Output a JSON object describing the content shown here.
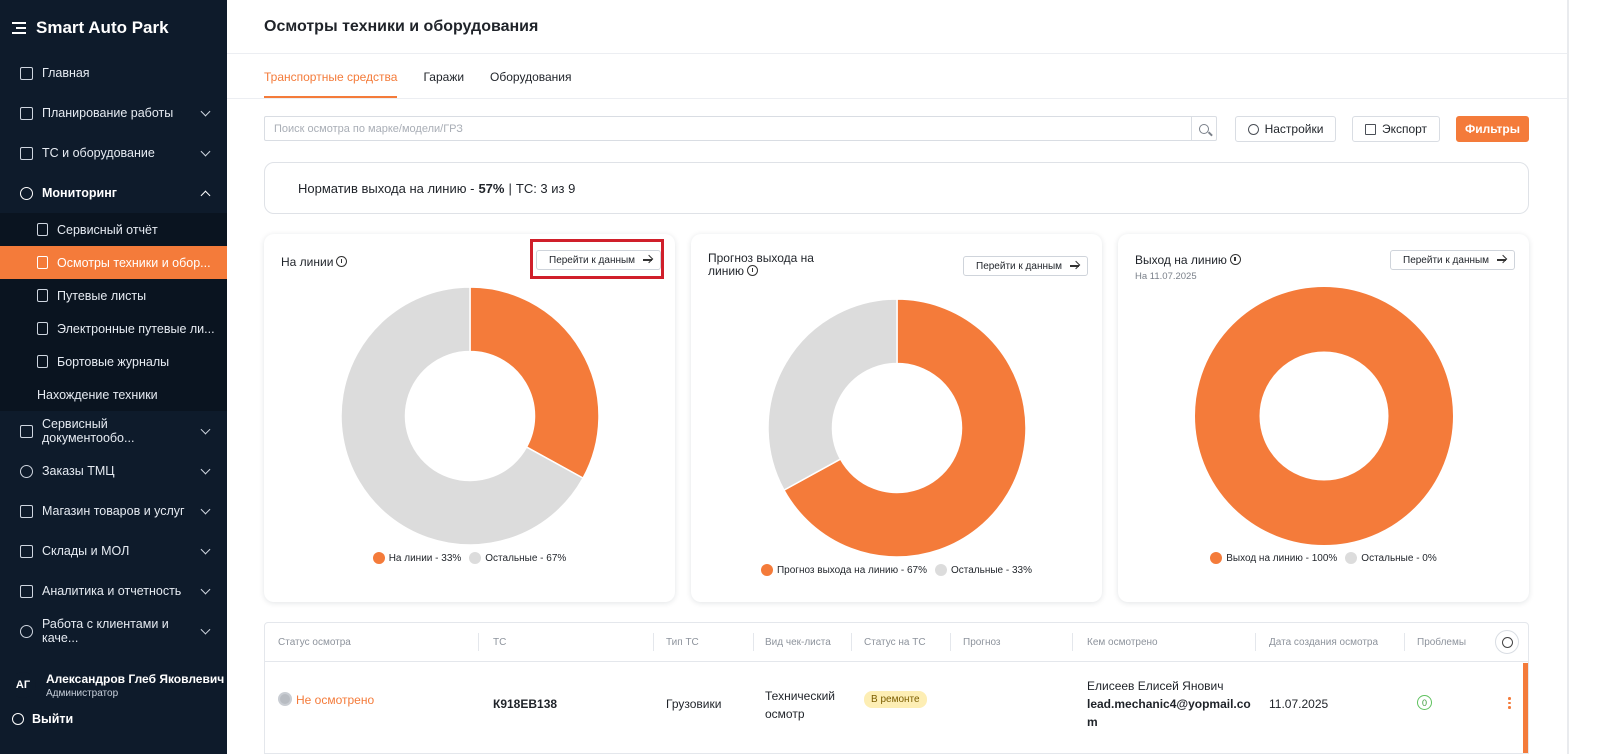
{
  "app": {
    "brand": "Smart Auto Park"
  },
  "sidebar": {
    "items": [
      {
        "label": "Главная"
      },
      {
        "label": "Планирование работы"
      },
      {
        "label": "ТС и оборудование"
      },
      {
        "label": "Мониторинг"
      }
    ],
    "sub_items": [
      {
        "label": "Сервисный отчёт"
      },
      {
        "label": "Осмотры техники и обор..."
      },
      {
        "label": "Путевые листы"
      },
      {
        "label": "Электронные путевые ли..."
      },
      {
        "label": "Бортовые журналы"
      },
      {
        "label": "Нахождение техники"
      }
    ],
    "items_after": [
      {
        "label": "Сервисный документообо..."
      },
      {
        "label": "Заказы ТМЦ"
      },
      {
        "label": "Магазин товаров и услуг"
      },
      {
        "label": "Склады и МОЛ"
      },
      {
        "label": "Аналитика и отчетность"
      },
      {
        "label": "Работа с клиентами и каче..."
      }
    ],
    "user": {
      "initials": "АГ",
      "name": "Александров Глеб Яковлевич",
      "role": "Администратор"
    },
    "logout": "Выйти"
  },
  "header": {
    "title": "Осмотры техники и оборудования"
  },
  "tabs": [
    {
      "label": "Транспортные средства"
    },
    {
      "label": "Гаражи"
    },
    {
      "label": "Оборудования"
    }
  ],
  "search": {
    "placeholder": "Поиск осмотра по марке/модели/ГРЗ"
  },
  "toolbar": {
    "settings": "Настройки",
    "export": "Экспорт",
    "filters": "Фильтры"
  },
  "norm": {
    "label": "Норматив выхода на линию -",
    "percent": "57%",
    "sep": "|",
    "vehicles": "ТС: 3 из 9"
  },
  "cards": [
    {
      "title": "На линии",
      "subtitle": "",
      "button": "Перейти к данным",
      "legend_a": "На линии - 33%",
      "legend_b": "Остальные - 67%"
    },
    {
      "title_line1": "Прогноз выхода на",
      "title_line2": "линию",
      "button": "Перейти к данным",
      "legend_a": "Прогноз выхода на линию - 67%",
      "legend_b": "Остальные - 33%"
    },
    {
      "title": "Выход на линию",
      "subtitle": "На 11.07.2025",
      "button": "Перейти к данным",
      "legend_a": "Выход на линию - 100%",
      "legend_b": "Остальные - 0%"
    }
  ],
  "chart_data": [
    {
      "type": "pie",
      "title": "На линии",
      "categories": [
        "На линии",
        "Остальные"
      ],
      "values": [
        33,
        67
      ],
      "colors": [
        "#f47b3a",
        "#dcdcdc"
      ],
      "legend": "bottom"
    },
    {
      "type": "pie",
      "title": "Прогноз выхода на линию",
      "categories": [
        "Прогноз выхода на линию",
        "Остальные"
      ],
      "values": [
        67,
        33
      ],
      "colors": [
        "#f47b3a",
        "#dcdcdc"
      ],
      "legend": "bottom"
    },
    {
      "type": "pie",
      "title": "Выход на линию",
      "subtitle": "На 11.07.2025",
      "categories": [
        "Выход на линию",
        "Остальные"
      ],
      "values": [
        100,
        0
      ],
      "colors": [
        "#f47b3a",
        "#dcdcdc"
      ],
      "legend": "bottom"
    }
  ],
  "table": {
    "columns": [
      "Статус осмотра",
      "ТС",
      "Тип ТС",
      "Вид чек-листа",
      "Статус на ТС",
      "Прогноз",
      "Кем осмотрено",
      "Дата создания осмотра",
      "Проблемы"
    ],
    "rows": [
      {
        "status": "Не осмотрено",
        "vehicle": "К918ЕВ138",
        "type": "Грузовики",
        "checklist_line1": "Технический",
        "checklist_line2": "осмотр",
        "vehicle_status": "В ремонте",
        "forecast": "",
        "inspector_name": "Елисеев Елисей Янович",
        "inspector_email_line1": "lead.mechanic4@yopmail.co",
        "inspector_email_line2": "m",
        "date": "11.07.2025",
        "problems": "0"
      }
    ]
  },
  "colors": {
    "accent": "#f47b3a",
    "sidebar_bg": "#0e1b2b",
    "rest": "#dcdcdc",
    "highlight": "#d01f2a"
  }
}
